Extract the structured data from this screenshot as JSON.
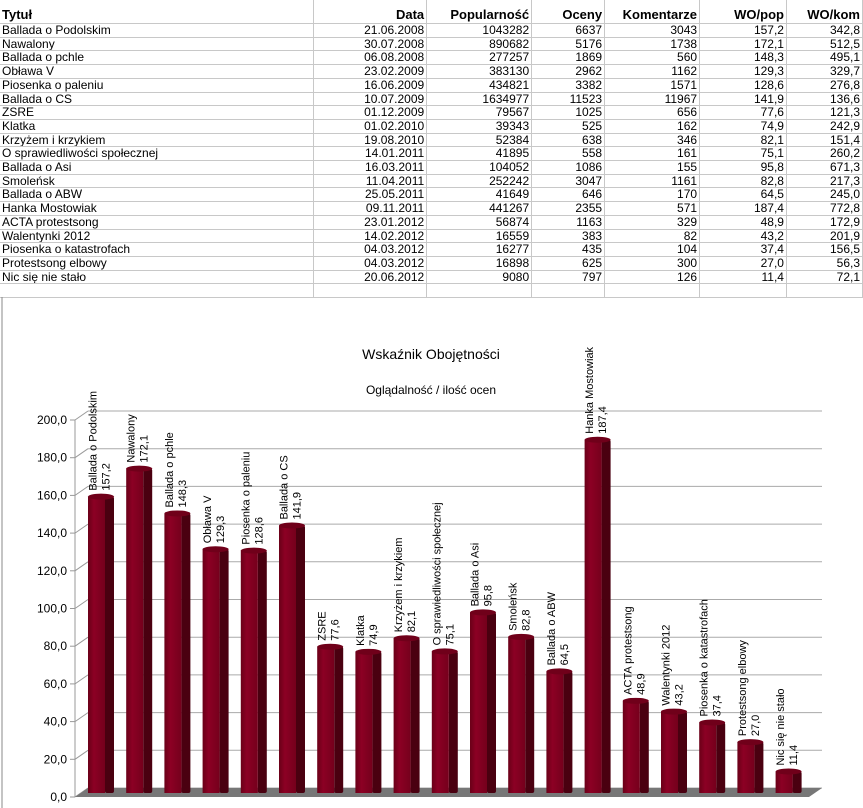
{
  "table": {
    "headers": [
      "Tytuł",
      "Data",
      "Popularność",
      "Oceny",
      "Komentarze",
      "WO/pop",
      "WO/kom"
    ],
    "rows": [
      [
        "Ballada o Podolskim",
        "21.06.2008",
        "1043282",
        "6637",
        "3043",
        "157,2",
        "342,8"
      ],
      [
        "Nawalony",
        "30.07.2008",
        "890682",
        "5176",
        "1738",
        "172,1",
        "512,5"
      ],
      [
        "Ballada o pchle",
        "06.08.2008",
        "277257",
        "1869",
        "560",
        "148,3",
        "495,1"
      ],
      [
        "Obława V",
        "23.02.2009",
        "383130",
        "2962",
        "1162",
        "129,3",
        "329,7"
      ],
      [
        "Piosenka o paleniu",
        "16.06.2009",
        "434821",
        "3382",
        "1571",
        "128,6",
        "276,8"
      ],
      [
        "Ballada o CS",
        "10.07.2009",
        "1634977",
        "11523",
        "11967",
        "141,9",
        "136,6"
      ],
      [
        "ZSRE",
        "01.12.2009",
        "79567",
        "1025",
        "656",
        "77,6",
        "121,3"
      ],
      [
        "Klatka",
        "01.02.2010",
        "39343",
        "525",
        "162",
        "74,9",
        "242,9"
      ],
      [
        "Krzyżem i krzykiem",
        "19.08.2010",
        "52384",
        "638",
        "346",
        "82,1",
        "151,4"
      ],
      [
        "O sprawiedliwości społecznej",
        "14.01.2011",
        "41895",
        "558",
        "161",
        "75,1",
        "260,2"
      ],
      [
        "Ballada o Asi",
        "16.03.2011",
        "104052",
        "1086",
        "155",
        "95,8",
        "671,3"
      ],
      [
        "Smoleńsk",
        "11.04.2011",
        "252242",
        "3047",
        "1161",
        "82,8",
        "217,3"
      ],
      [
        "Ballada o ABW",
        "25.05.2011",
        "41649",
        "646",
        "170",
        "64,5",
        "245,0"
      ],
      [
        "Hanka Mostowiak",
        "09.11.2011",
        "441267",
        "2355",
        "571",
        "187,4",
        "772,8"
      ],
      [
        "ACTA protestsong",
        "23.01.2012",
        "56874",
        "1163",
        "329",
        "48,9",
        "172,9"
      ],
      [
        "Walentynki 2012",
        "14.02.2012",
        "16559",
        "383",
        "82",
        "43,2",
        "201,9"
      ],
      [
        "Piosenka o katastrofach",
        "04.03.2012",
        "16277",
        "435",
        "104",
        "37,4",
        "156,5"
      ],
      [
        "Protestsong elbowy",
        "04.03.2012",
        "16898",
        "625",
        "300",
        "27,0",
        "56,3"
      ],
      [
        "Nic się nie stało",
        "20.06.2012",
        "9080",
        "797",
        "126",
        "11,4",
        "72,1"
      ]
    ]
  },
  "chart_data": {
    "type": "bar",
    "title": "Wskaźnik Obojętności",
    "subtitle": "Oglądalność / ilość ocen",
    "categories": [
      "Ballada o Podolskim",
      "Nawalony",
      "Ballada o pchle",
      "Obława V",
      "Piosenka o paleniu",
      "Ballada o CS",
      "ZSRE",
      "Klatka",
      "Krzyżem i krzykiem",
      "O sprawiedliwości społecznej",
      "Ballada o Asi",
      "Smoleńsk",
      "Ballada o ABW",
      "Hanka Mostowiak",
      "ACTA protestsong",
      "Walentynki 2012",
      "Piosenka o katastrofach",
      "Protestsong elbowy",
      "Nic się nie stało"
    ],
    "values": [
      157.2,
      172.1,
      148.3,
      129.3,
      128.6,
      141.9,
      77.6,
      74.9,
      82.1,
      75.1,
      95.8,
      82.8,
      64.5,
      187.4,
      48.9,
      43.2,
      37.4,
      27.0,
      11.4
    ],
    "value_labels": [
      "157,2",
      "172,1",
      "148,3",
      "129,3",
      "128,6",
      "141,9",
      "77,6",
      "74,9",
      "82,1",
      "75,1",
      "95,8",
      "82,8",
      "64,5",
      "187,4",
      "48,9",
      "43,2",
      "37,4",
      "27,0",
      "11,4"
    ],
    "yticks": [
      "0,0",
      "20,0",
      "40,0",
      "60,0",
      "80,0",
      "100,0",
      "120,0",
      "140,0",
      "160,0",
      "180,0",
      "200,0"
    ],
    "ylim": [
      0,
      200
    ],
    "grid": true,
    "bar_color": "#800020"
  }
}
